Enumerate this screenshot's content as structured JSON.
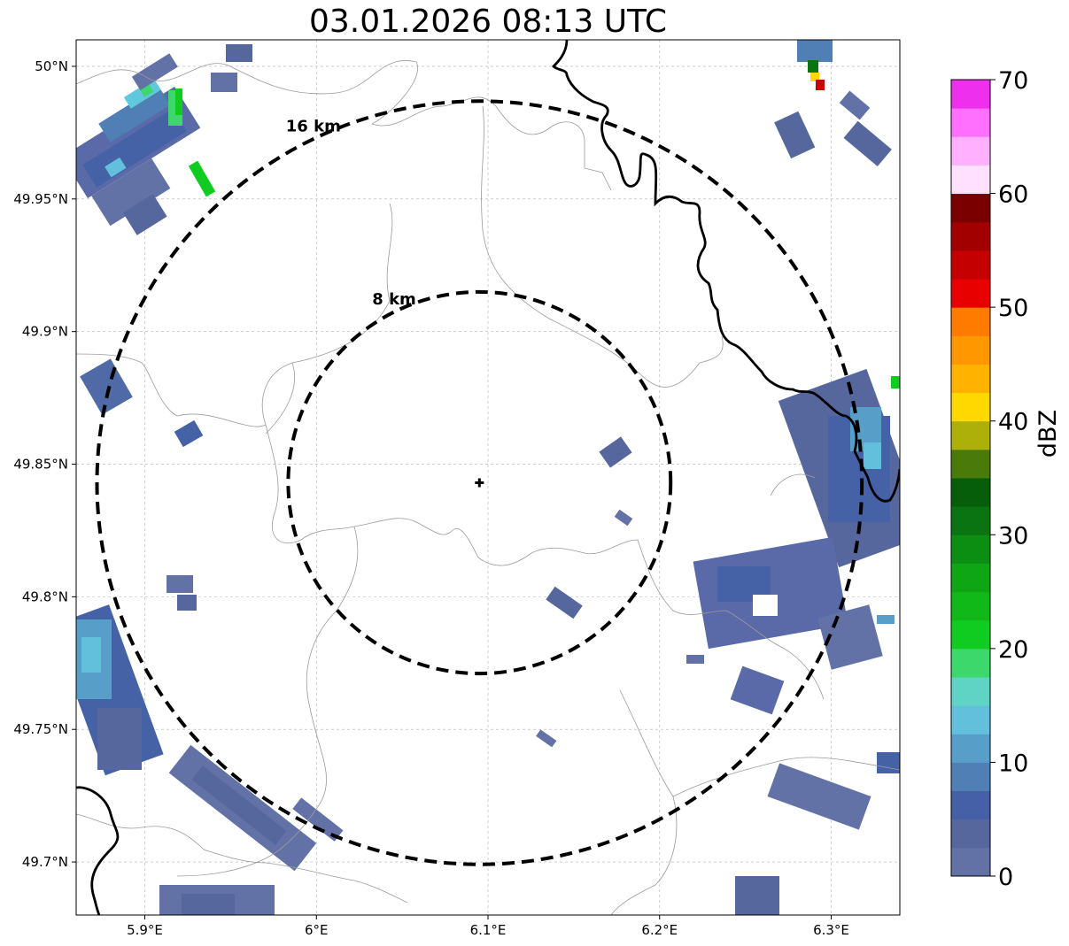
{
  "title": "03.01.2026 08:13 UTC",
  "map": {
    "lon_range": [
      5.86,
      6.34
    ],
    "lat_range": [
      49.68,
      50.01
    ],
    "lon_ticks": [
      {
        "value": 5.9,
        "label": "5.9°E"
      },
      {
        "value": 6.0,
        "label": "6°E"
      },
      {
        "value": 6.1,
        "label": "6.1°E"
      },
      {
        "value": 6.2,
        "label": "6.2°E"
      },
      {
        "value": 6.3,
        "label": "6.3°E"
      }
    ],
    "lat_ticks": [
      {
        "value": 50.0,
        "label": "50°N"
      },
      {
        "value": 49.95,
        "label": "49.95°N"
      },
      {
        "value": 49.9,
        "label": "49.9°N"
      },
      {
        "value": 49.85,
        "label": "49.85°N"
      },
      {
        "value": 49.8,
        "label": "49.8°N"
      },
      {
        "value": 49.75,
        "label": "49.75°N"
      },
      {
        "value": 49.7,
        "label": "49.7°N"
      }
    ],
    "center": {
      "lon": 6.095,
      "lat": 49.843
    },
    "rings": [
      {
        "label": "8 km",
        "radius_km": 8
      },
      {
        "label": "16 km",
        "radius_km": 16
      }
    ],
    "grid": true
  },
  "colorbar": {
    "label": "dBZ",
    "min": 0,
    "max": 70,
    "tick_labels": [
      "0",
      "10",
      "20",
      "30",
      "40",
      "50",
      "60",
      "70"
    ],
    "colors": [
      "#6272a6",
      "#56679e",
      "#4560a6",
      "#4f7fb5",
      "#579fc8",
      "#63c0dc",
      "#5fd4c4",
      "#3dd86c",
      "#10cc20",
      "#10b818",
      "#0fa616",
      "#0c8e12",
      "#0a7412",
      "#075e0a",
      "#4a7a0a",
      "#aeb00a",
      "#ffd800",
      "#ffb300",
      "#ff9700",
      "#ff7b00",
      "#e80000",
      "#c40000",
      "#a20000",
      "#7a0000",
      "#ffe0ff",
      "#ffb0ff",
      "#ff70ff",
      "#ee30ee"
    ]
  },
  "colors": {
    "rings": "#000000",
    "grid": "#b0b0b0",
    "borders": "#000000",
    "admin_lines": "#9a9a9a"
  }
}
